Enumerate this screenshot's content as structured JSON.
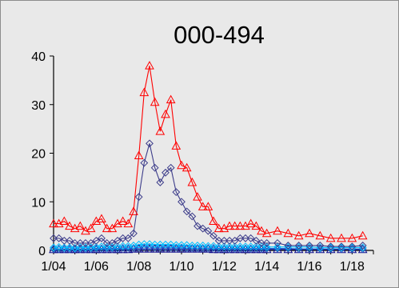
{
  "chart_data": {
    "type": "line",
    "title": "000-494",
    "xlabel": "",
    "ylabel": "",
    "x_tick_labels": [
      "1/04",
      "1/06",
      "1/08",
      "1/10",
      "1/12",
      "1/14",
      "1/16",
      "1/18"
    ],
    "y_tick_labels": [
      "0",
      "10",
      "20",
      "30",
      "40"
    ],
    "ylim": [
      0,
      40
    ],
    "grid": false,
    "legend": "none",
    "x": [
      2004.0,
      2004.25,
      2004.5,
      2004.75,
      2005.0,
      2005.25,
      2005.5,
      2005.75,
      2006.0,
      2006.25,
      2006.5,
      2006.75,
      2007.0,
      2007.25,
      2007.5,
      2007.75,
      2008.0,
      2008.25,
      2008.5,
      2008.75,
      2009.0,
      2009.25,
      2009.5,
      2009.75,
      2010.0,
      2010.25,
      2010.5,
      2010.75,
      2011.0,
      2011.25,
      2011.5,
      2011.75,
      2012.0,
      2012.25,
      2012.5,
      2012.75,
      2013.0,
      2013.25,
      2013.5,
      2013.75,
      2014.0,
      2014.5,
      2015.0,
      2015.5,
      2016.0,
      2016.5,
      2017.0,
      2017.5,
      2018.0,
      2018.5
    ],
    "series": [
      {
        "color": "#ff0000",
        "marker": "triangle",
        "values": [
          5.5,
          5.5,
          6,
          5,
          4.5,
          5,
          4,
          4.5,
          6,
          6.5,
          4.5,
          4.5,
          5.5,
          6,
          5.5,
          8,
          19.5,
          32.5,
          38,
          30.5,
          24.5,
          28,
          31,
          21.5,
          17.5,
          17,
          14,
          11,
          9,
          9,
          6,
          4.5,
          4.5,
          5,
          5,
          5,
          5,
          5.5,
          5,
          4,
          3.5,
          4,
          3.5,
          3,
          3.5,
          3,
          2.5,
          2.5,
          2.5,
          3
        ]
      },
      {
        "color": "#3c3c8a",
        "marker": "diamond",
        "values": [
          2.5,
          2.5,
          2,
          2,
          1.5,
          1.5,
          1.5,
          1.5,
          2,
          2.5,
          1.5,
          1.5,
          2,
          2.5,
          2.5,
          3.5,
          11,
          18,
          22,
          17,
          14,
          16,
          17,
          12,
          10,
          8,
          7,
          5,
          4.5,
          4,
          3,
          2,
          2,
          2,
          2,
          2.5,
          2.5,
          2.5,
          2,
          1.5,
          1.5,
          1.5,
          1,
          1,
          1,
          1,
          0.8,
          0.8,
          0.8,
          1
        ]
      },
      {
        "color": "#00c0ff",
        "marker": "diamond",
        "values": [
          0.6,
          0.7,
          0.6,
          0.6,
          0.5,
          0.6,
          0.6,
          0.6,
          0.7,
          0.8,
          0.7,
          0.7,
          0.8,
          0.9,
          0.9,
          1,
          1.2,
          1.3,
          1.3,
          1.2,
          1.2,
          1.2,
          1.2,
          1.1,
          1.1,
          1.1,
          1,
          1,
          1,
          0.9,
          0.9,
          0.8,
          0.8,
          0.8,
          0.8,
          0.8,
          0.8,
          0.8,
          0.8,
          0.8,
          0.7,
          0.7,
          0.7,
          0.7,
          0.7,
          0.6,
          0.6,
          0.6,
          0.6,
          0.6
        ]
      },
      {
        "color": "#2060d0",
        "marker": "diamond",
        "values": [
          0.3,
          0.3,
          0.3,
          0.3,
          0.3,
          0.3,
          0.3,
          0.3,
          0.4,
          0.4,
          0.4,
          0.4,
          0.4,
          0.5,
          0.5,
          0.5,
          0.6,
          0.7,
          0.7,
          0.6,
          0.6,
          0.6,
          0.6,
          0.6,
          0.6,
          0.5,
          0.5,
          0.5,
          0.5,
          0.5,
          0.5,
          0.4,
          0.4,
          0.4,
          0.4,
          0.4,
          0.4,
          0.4,
          0.4,
          0.4,
          0.4,
          0.4,
          0.4,
          0.3,
          0.3,
          0.3,
          0.3,
          0.3,
          0.3,
          0.3
        ]
      },
      {
        "color": "#0a0a8c",
        "marker": "triangle",
        "values": [
          0.2,
          0.2,
          0.2,
          0.2,
          0.2,
          0.2,
          0.2,
          0.2,
          0.2,
          0.2,
          0.2,
          0.2,
          0.2,
          0.2,
          0.2,
          0.3,
          0.3,
          0.3,
          0.3,
          0.3,
          0.3,
          0.3,
          0.3,
          0.3,
          0.3,
          0.3,
          0.3,
          0.3,
          0.3,
          0.3,
          0.2,
          0.2,
          0.2,
          0.2,
          0.2,
          0.2,
          0.2,
          0.2,
          0.2,
          0.2,
          0.2,
          0.2,
          0.2,
          0.2,
          0.2,
          0.2,
          0.2,
          0.2,
          0.2,
          0.2
        ]
      }
    ]
  }
}
